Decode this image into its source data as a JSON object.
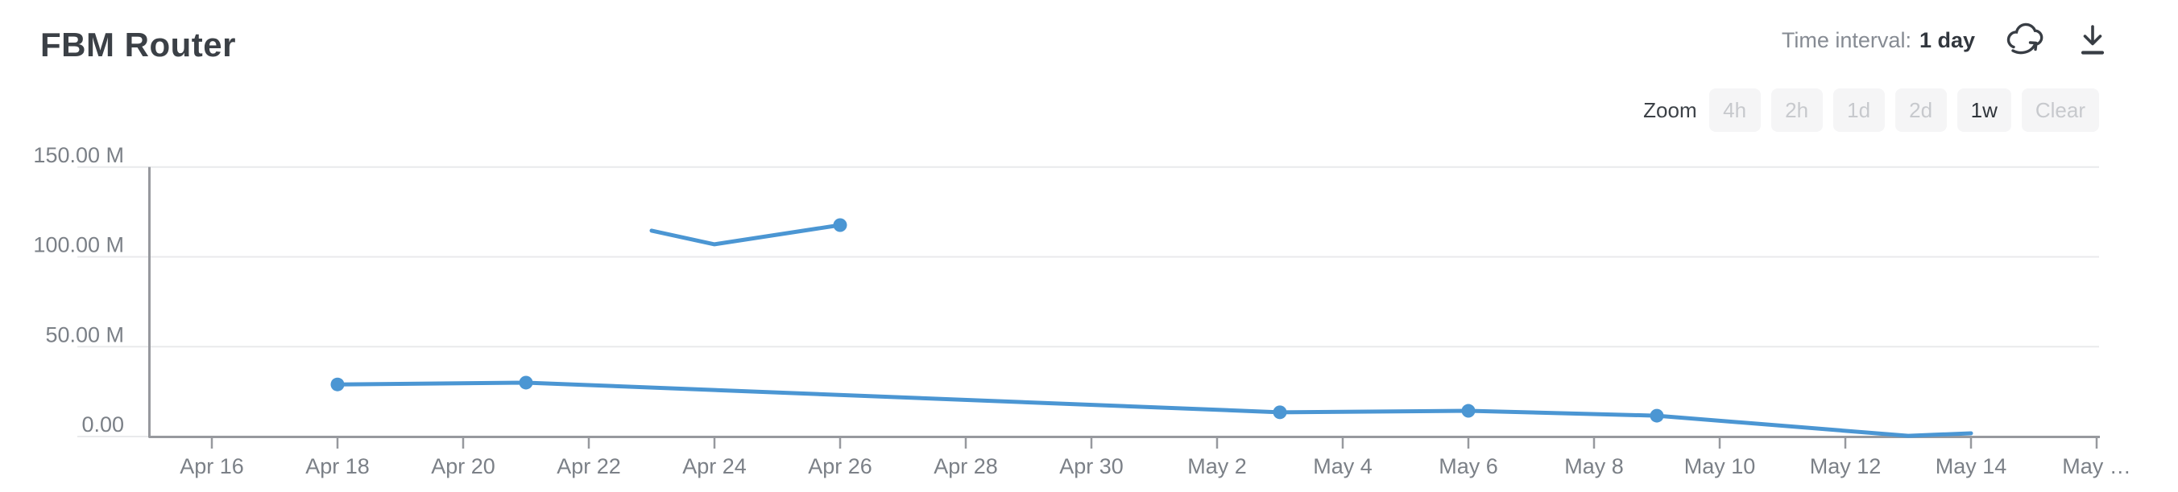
{
  "header": {
    "title": "FBM Router",
    "time_interval_label": "Time interval:",
    "time_interval_value": "1 day",
    "icons": [
      "cloud-sync-icon",
      "download-icon"
    ]
  },
  "zoom_controls": {
    "label": "Zoom",
    "buttons": [
      {
        "label": "4h",
        "state": "disabled"
      },
      {
        "label": "2h",
        "state": "disabled"
      },
      {
        "label": "1d",
        "state": "disabled"
      },
      {
        "label": "2d",
        "state": "disabled"
      },
      {
        "label": "1w",
        "state": "active"
      },
      {
        "label": "Clear",
        "state": "disabled"
      }
    ]
  },
  "chart_data": {
    "type": "line",
    "title": "FBM Router",
    "grid": true,
    "legend": false,
    "colors": {
      "line": "#4b96d3",
      "gridline": "#e9eaec",
      "axis": "#97999e",
      "axis_text": "#7b8087"
    },
    "y_axis": {
      "unit": "millions",
      "range_millions": [
        0,
        150
      ],
      "tick_values_millions": [
        0,
        50,
        100,
        150
      ],
      "tick_labels": [
        "0.00",
        "50.00 M",
        "100.00 M",
        "150.00 M"
      ]
    },
    "x_axis": {
      "unit": "date",
      "tick_days_from_start": [
        0,
        2,
        4,
        6,
        8,
        10,
        12,
        14,
        16,
        18,
        20,
        22,
        24,
        26,
        28,
        30
      ],
      "tick_labels": [
        "Apr 16",
        "Apr 18",
        "Apr 20",
        "Apr 22",
        "Apr 24",
        "Apr 26",
        "Apr 28",
        "Apr 30",
        "May 2",
        "May 4",
        "May 6",
        "May 8",
        "May 10",
        "May 12",
        "May 14",
        "May …"
      ]
    },
    "series": [
      {
        "name": "FBM Router",
        "color": "#4b96d3",
        "segments": [
          {
            "points": [
              {
                "date": "Apr 18",
                "day": 2,
                "value_millions": 29,
                "marker": true
              },
              {
                "date": "Apr 21",
                "day": 5,
                "value_millions": 30,
                "marker": true
              },
              {
                "date": "May 3",
                "day": 17,
                "value_millions": 13.5,
                "marker": true
              },
              {
                "date": "May 6",
                "day": 20,
                "value_millions": 14.3,
                "marker": true
              },
              {
                "date": "May 9",
                "day": 23,
                "value_millions": 11.6,
                "marker": true
              },
              {
                "date": "May 13",
                "day": 27,
                "value_millions": 0.4,
                "marker": false
              },
              {
                "date": "May 14",
                "day": 28,
                "value_millions": 1.8,
                "marker": false
              }
            ]
          },
          {
            "points": [
              {
                "date": "Apr 23",
                "day": 7,
                "value_millions": 114.6,
                "marker": false
              },
              {
                "date": "Apr 24",
                "day": 8,
                "value_millions": 107,
                "marker": false
              },
              {
                "date": "Apr 26",
                "day": 10,
                "value_millions": 117.7,
                "marker": true
              }
            ]
          }
        ]
      }
    ]
  }
}
